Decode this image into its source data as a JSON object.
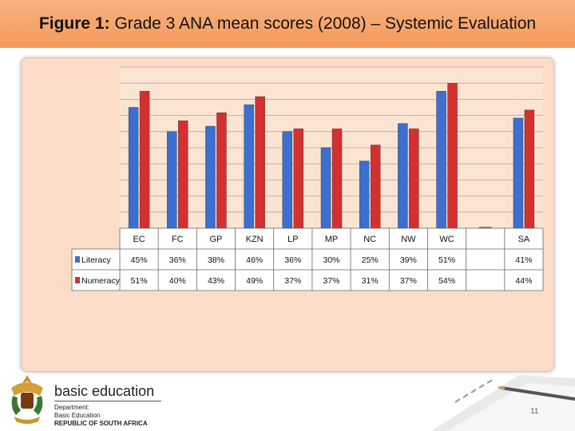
{
  "header": {
    "title_prefix": "Figure 1:",
    "title_text": "Grade 3 ANA mean scores (2008) – Systemic Evaluation"
  },
  "chart_data": {
    "type": "bar",
    "categories": [
      "EC",
      "FC",
      "GP",
      "KZN",
      "LP",
      "MP",
      "NC",
      "NW",
      "WC",
      "",
      "SA"
    ],
    "series": [
      {
        "name": "Literacy",
        "color": "#3b6fd0",
        "values": [
          45,
          36,
          38,
          46,
          36,
          30,
          25,
          39,
          51,
          null,
          41
        ],
        "labels": [
          "45%",
          "36%",
          "38%",
          "46%",
          "36%",
          "30%",
          "25%",
          "39%",
          "51%",
          "",
          "41%"
        ]
      },
      {
        "name": "Numeracy",
        "color": "#d43030",
        "values": [
          51,
          40,
          43,
          49,
          37,
          37,
          31,
          37,
          54,
          null,
          44
        ],
        "labels": [
          "51%",
          "40%",
          "43%",
          "49%",
          "37%",
          "37%",
          "31%",
          "37%",
          "54%",
          "",
          "44%"
        ]
      }
    ],
    "ylim": [
      0,
      60
    ],
    "grid": true,
    "legend": "data-table"
  },
  "footer": {
    "logo_main": "basic education",
    "logo_lines": [
      "Department:",
      "Basic Education",
      "REPUBLIC OF SOUTH AFRICA"
    ],
    "page_number": "11"
  }
}
